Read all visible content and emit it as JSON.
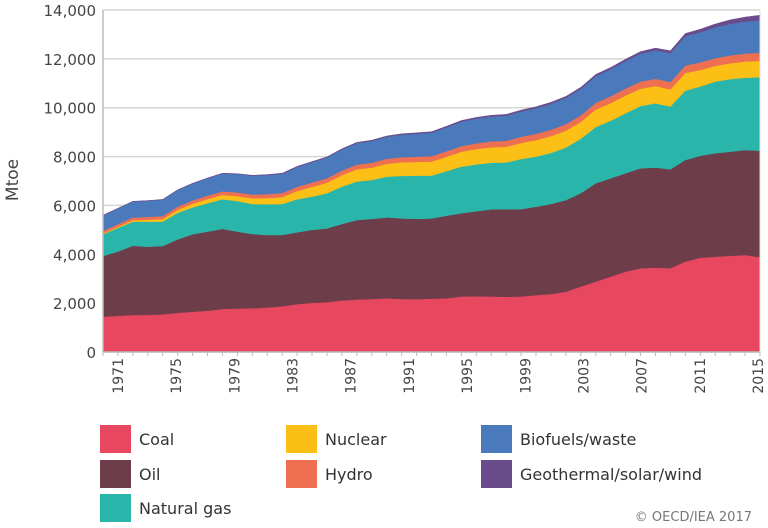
{
  "chart_data": {
    "type": "area",
    "stacked": true,
    "ylabel": "Mtoe",
    "ylim": [
      0,
      14000
    ],
    "yticks": [
      0,
      2000,
      4000,
      6000,
      8000,
      10000,
      12000,
      14000
    ],
    "ytick_labels": [
      "0",
      "2,000",
      "4,000",
      "6,000",
      "8,000",
      "10,000",
      "12,000",
      "14,000"
    ],
    "xlim": [
      1971,
      2015
    ],
    "xtick_labels": [
      "1971",
      "1975",
      "1979",
      "1983",
      "1987",
      "1991",
      "1995",
      "1999",
      "2003",
      "2007",
      "2011",
      "2015"
    ],
    "grid": "horizontal",
    "legend_placement": "bottom",
    "x": [
      1971,
      1972,
      1973,
      1974,
      1975,
      1976,
      1977,
      1978,
      1979,
      1980,
      1981,
      1982,
      1983,
      1984,
      1985,
      1986,
      1987,
      1988,
      1989,
      1990,
      1991,
      1992,
      1993,
      1994,
      1995,
      1996,
      1997,
      1998,
      1999,
      2000,
      2001,
      2002,
      2003,
      2004,
      2005,
      2006,
      2007,
      2008,
      2009,
      2010,
      2011,
      2012,
      2013,
      2014,
      2015
    ],
    "series": [
      {
        "name": "Coal",
        "color": "#e8485f",
        "values": [
          1450,
          1480,
          1515,
          1520,
          1540,
          1600,
          1650,
          1690,
          1760,
          1780,
          1790,
          1820,
          1870,
          1960,
          2010,
          2040,
          2110,
          2150,
          2170,
          2200,
          2170,
          2160,
          2180,
          2200,
          2270,
          2280,
          2270,
          2260,
          2270,
          2330,
          2375,
          2470,
          2680,
          2880,
          3085,
          3290,
          3430,
          3450,
          3430,
          3700,
          3860,
          3900,
          3940,
          3970,
          3880
        ]
      },
      {
        "name": "Oil",
        "color": "#6e3d4a",
        "values": [
          2480,
          2630,
          2835,
          2790,
          2800,
          3010,
          3170,
          3240,
          3280,
          3150,
          3040,
          2970,
          2920,
          2940,
          2990,
          3020,
          3130,
          3250,
          3280,
          3310,
          3300,
          3290,
          3290,
          3380,
          3410,
          3480,
          3570,
          3580,
          3580,
          3620,
          3685,
          3750,
          3820,
          4030,
          4025,
          4030,
          4090,
          4100,
          4050,
          4160,
          4170,
          4240,
          4260,
          4300,
          4360
        ]
      },
      {
        "name": "Natural gas",
        "color": "#2ab5aa",
        "values": [
          890,
          970,
          990,
          1030,
          1000,
          1090,
          1100,
          1160,
          1210,
          1250,
          1230,
          1260,
          1270,
          1350,
          1360,
          1440,
          1530,
          1580,
          1590,
          1670,
          1740,
          1770,
          1750,
          1820,
          1910,
          1920,
          1910,
          1920,
          2050,
          2050,
          2090,
          2150,
          2230,
          2300,
          2360,
          2450,
          2550,
          2630,
          2570,
          2840,
          2840,
          2930,
          2970,
          2960,
          3010
        ]
      },
      {
        "name": "Nuclear",
        "color": "#fbbf16",
        "values": [
          30,
          45,
          55,
          70,
          100,
          120,
          150,
          170,
          180,
          200,
          230,
          250,
          280,
          340,
          400,
          430,
          470,
          500,
          510,
          525,
          555,
          560,
          580,
          590,
          610,
          630,
          630,
          640,
          660,
          675,
          690,
          695,
          690,
          715,
          720,
          730,
          710,
          710,
          700,
          720,
          675,
          640,
          650,
          660,
          670
        ]
      },
      {
        "name": "Hydro",
        "color": "#ee7050",
        "values": [
          105,
          110,
          115,
          121,
          126,
          131,
          136,
          141,
          147,
          152,
          157,
          162,
          167,
          173,
          178,
          183,
          188,
          193,
          199,
          204,
          209,
          214,
          219,
          225,
          230,
          235,
          240,
          245,
          251,
          256,
          261,
          266,
          271,
          277,
          282,
          287,
          292,
          297,
          303,
          308,
          313,
          318,
          323,
          329,
          334
        ]
      },
      {
        "name": "Biofuels/waste",
        "color": "#4a79bc",
        "values": [
          640,
          640,
          650,
          660,
          670,
          680,
          690,
          710,
          730,
          750,
          770,
          780,
          790,
          810,
          830,
          845,
          860,
          875,
          890,
          900,
          920,
          940,
          960,
          980,
          1000,
          1010,
          1020,
          1030,
          1040,
          1050,
          1060,
          1070,
          1080,
          1090,
          1100,
          1120,
          1140,
          1160,
          1180,
          1200,
          1230,
          1260,
          1290,
          1310,
          1330
        ]
      },
      {
        "name": "Geothermal/solar/wind",
        "color": "#6a4c8c",
        "values": [
          5,
          6,
          7,
          8,
          9,
          10,
          11,
          12,
          13,
          15,
          17,
          19,
          21,
          23,
          25,
          27,
          29,
          31,
          33,
          35,
          37,
          39,
          41,
          43,
          45,
          47,
          49,
          51,
          53,
          56,
          59,
          62,
          66,
          70,
          75,
          80,
          86,
          92,
          98,
          110,
          125,
          140,
          160,
          180,
          205
        ]
      }
    ]
  },
  "copyright": "© OECD/IEA 2017"
}
